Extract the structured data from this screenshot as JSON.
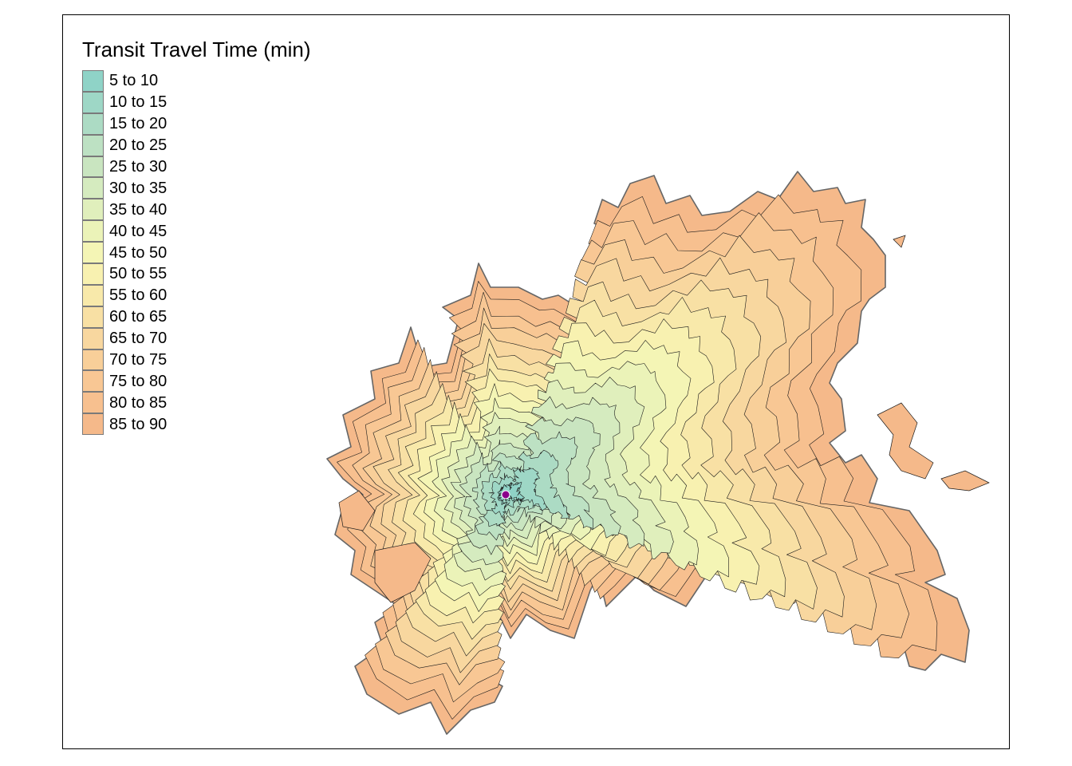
{
  "legend": {
    "title": "Transit Travel Time (min)",
    "classes": [
      {
        "label": "5 to 10",
        "color": "#8fd3c7"
      },
      {
        "label": "10 to 15",
        "color": "#9ed7c6"
      },
      {
        "label": "15 to 20",
        "color": "#acdbc4"
      },
      {
        "label": "20 to 25",
        "color": "#bde1c3"
      },
      {
        "label": "25 to 30",
        "color": "#c9e5c0"
      },
      {
        "label": "30 to 35",
        "color": "#d5ebbf"
      },
      {
        "label": "35 to 40",
        "color": "#e0efbc"
      },
      {
        "label": "40 to 45",
        "color": "#ebf3b8"
      },
      {
        "label": "45 to 50",
        "color": "#f4f5b5"
      },
      {
        "label": "50 to 55",
        "color": "#f8f1b0"
      },
      {
        "label": "55 to 60",
        "color": "#f8e9aa"
      },
      {
        "label": "60 to 65",
        "color": "#f8e0a4"
      },
      {
        "label": "65 to 70",
        "color": "#f8d79f"
      },
      {
        "label": "70 to 75",
        "color": "#f8cf99"
      },
      {
        "label": "75 to 80",
        "color": "#f8c794"
      },
      {
        "label": "80 to 85",
        "color": "#f7c08f"
      },
      {
        "label": "85 to 90",
        "color": "#f5b98a"
      }
    ]
  },
  "origin_point": {
    "color": "#8b008b"
  },
  "colors": {
    "contour_line": "#1a1a1a",
    "outer_line": "#666666",
    "frame": "#000000"
  }
}
